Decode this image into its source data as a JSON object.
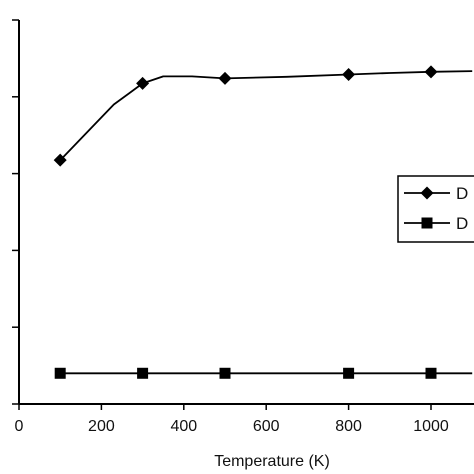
{
  "chart_data": {
    "type": "line",
    "title": "",
    "xlabel": "Temperature (K)",
    "ylabel": "",
    "xlim": [
      0,
      1100
    ],
    "ylim": [
      0,
      1
    ],
    "grid": false,
    "legend_position": "right",
    "x_ticks": [
      0,
      200,
      400,
      600,
      800,
      1000
    ],
    "x_tick_labels": [
      "0",
      "200",
      "400",
      "600",
      "800",
      "1000"
    ],
    "y_ticks": [
      0.0,
      0.2,
      0.4,
      0.6,
      0.8,
      1.0
    ],
    "series": [
      {
        "name": "D",
        "color": "#000000",
        "marker": "diamond",
        "x": [
          100,
          230,
          300,
          350,
          420,
          500,
          650,
          800,
          900,
          1000,
          1100
        ],
        "y": [
          0.635,
          0.78,
          0.835,
          0.853,
          0.853,
          0.848,
          0.852,
          0.858,
          0.862,
          0.865,
          0.867
        ],
        "marker_x": [
          100,
          300,
          500,
          800,
          1000
        ]
      },
      {
        "name": "D",
        "color": "#000000",
        "marker": "square",
        "x": [
          100,
          300,
          500,
          800,
          1000,
          1100
        ],
        "y": [
          0.08,
          0.08,
          0.08,
          0.08,
          0.08,
          0.08
        ],
        "marker_x": [
          100,
          300,
          500,
          800,
          1000
        ]
      }
    ]
  }
}
